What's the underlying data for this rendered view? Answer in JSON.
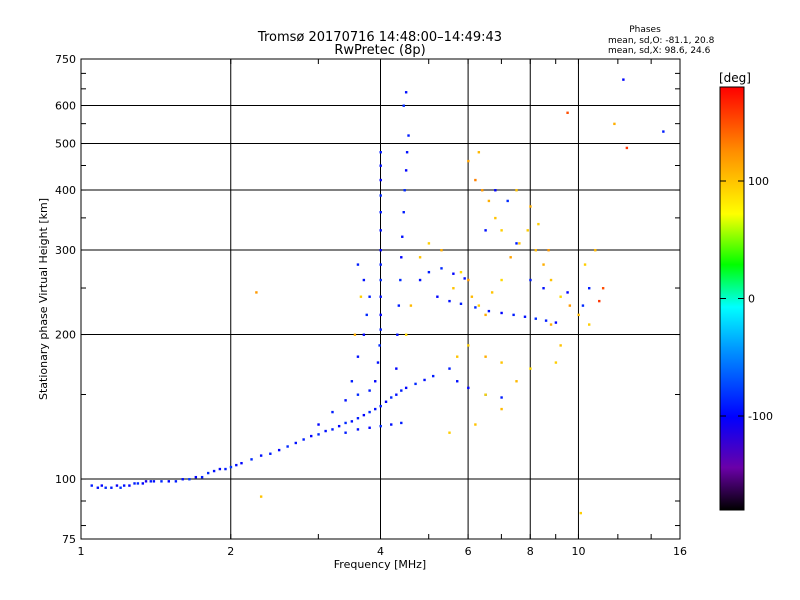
{
  "title_line1": "Tromsø 20170716 14:48:00–14:49:43",
  "title_line2": "RwPretec (8p)",
  "stats": {
    "heading": "Phases",
    "line_o": "mean, sd,O: -81.1, 20.8",
    "line_x": "mean, sd,X:  98.6, 24.6"
  },
  "colorbar": {
    "unit_label": "[deg]",
    "range": [
      -180,
      180
    ],
    "tick_labels": [
      "100",
      "0",
      "-100"
    ],
    "tick_values": [
      100,
      0,
      -100
    ],
    "stops": [
      "#000000",
      "#6a00a8",
      "#0000ff",
      "#0096ff",
      "#00ffff",
      "#00ff00",
      "#ffff00",
      "#ff8c00",
      "#ff0000"
    ]
  },
  "chart_data": {
    "type": "scatter",
    "title": "Tromsø 20170716 14:48:00–14:49:43",
    "subtitle": "RwPretec (8p)",
    "xlabel": "Frequency [MHz]",
    "ylabel": "Stationary phase Virtual Height [km]",
    "x_scale": "log",
    "y_scale": "log",
    "xlim": [
      1,
      16
    ],
    "ylim": [
      75,
      750
    ],
    "x_ticks": [
      1,
      2,
      4,
      6,
      8,
      10,
      16
    ],
    "x_tick_labels": [
      "1",
      "2",
      "4",
      "6",
      "8",
      "10",
      "16"
    ],
    "y_ticks": [
      75,
      100,
      200,
      300,
      400,
      500,
      600,
      750
    ],
    "y_tick_labels": [
      "75",
      "100",
      "200",
      "300",
      "400",
      "500",
      "600",
      "750"
    ],
    "grid": true,
    "color_variable": "phase [deg]",
    "series": [
      {
        "name": "O",
        "description": "Dense, mostly blue points (phase ≈ -80°)",
        "points": [
          [
            1.05,
            97,
            -90
          ],
          [
            1.08,
            96,
            -95
          ],
          [
            1.1,
            97,
            -100
          ],
          [
            1.12,
            96,
            -85
          ],
          [
            1.15,
            96,
            -90
          ],
          [
            1.18,
            97,
            -105
          ],
          [
            1.2,
            96,
            -80
          ],
          [
            1.22,
            97,
            -95
          ],
          [
            1.25,
            97,
            -100
          ],
          [
            1.28,
            98,
            -90
          ],
          [
            1.3,
            98,
            -85
          ],
          [
            1.33,
            98,
            -100
          ],
          [
            1.35,
            99,
            -110
          ],
          [
            1.38,
            99,
            -90
          ],
          [
            1.4,
            99,
            -95
          ],
          [
            1.45,
            99,
            -85
          ],
          [
            1.5,
            99,
            -100
          ],
          [
            1.55,
            99,
            -90
          ],
          [
            1.6,
            100,
            -95
          ],
          [
            1.65,
            100,
            -80
          ],
          [
            1.7,
            101,
            -100
          ],
          [
            1.75,
            101,
            -90
          ],
          [
            1.8,
            103,
            -85
          ],
          [
            1.85,
            104,
            -95
          ],
          [
            1.9,
            105,
            -100
          ],
          [
            1.95,
            105,
            -90
          ],
          [
            2.0,
            106,
            -80
          ],
          [
            2.05,
            107,
            -95
          ],
          [
            2.1,
            108,
            -100
          ],
          [
            2.2,
            110,
            -85
          ],
          [
            2.3,
            112,
            -95
          ],
          [
            2.4,
            113,
            -90
          ],
          [
            2.5,
            115,
            -100
          ],
          [
            2.6,
            117,
            -85
          ],
          [
            2.7,
            119,
            -95
          ],
          [
            2.8,
            121,
            -90
          ],
          [
            2.9,
            123,
            -100
          ],
          [
            3.0,
            124,
            -85
          ],
          [
            3.1,
            126,
            -95
          ],
          [
            3.2,
            127,
            -90
          ],
          [
            3.3,
            129,
            -100
          ],
          [
            3.4,
            131,
            -85
          ],
          [
            3.5,
            132,
            -95
          ],
          [
            3.6,
            134,
            -90
          ],
          [
            3.7,
            136,
            -100
          ],
          [
            3.8,
            138,
            -85
          ],
          [
            3.9,
            140,
            -95
          ],
          [
            4.0,
            142,
            -90
          ],
          [
            4.1,
            145,
            -100
          ],
          [
            4.2,
            148,
            -85
          ],
          [
            4.3,
            150,
            -95
          ],
          [
            4.4,
            153,
            -90
          ],
          [
            4.5,
            155,
            -100
          ],
          [
            4.7,
            158,
            -85
          ],
          [
            4.9,
            161,
            -95
          ],
          [
            5.1,
            164,
            -90
          ],
          [
            3.4,
            125,
            -90
          ],
          [
            3.6,
            127,
            -95
          ],
          [
            3.8,
            128,
            -100
          ],
          [
            4.0,
            129,
            -85
          ],
          [
            4.2,
            130,
            -95
          ],
          [
            4.4,
            131,
            -90
          ],
          [
            3.0,
            130,
            -100
          ],
          [
            3.2,
            138,
            -90
          ],
          [
            3.4,
            146,
            -95
          ],
          [
            3.6,
            150,
            -85
          ],
          [
            3.8,
            153,
            -90
          ],
          [
            3.9,
            160,
            -100
          ],
          [
            3.95,
            175,
            -95
          ],
          [
            3.98,
            190,
            -85
          ],
          [
            4.0,
            205,
            -90
          ],
          [
            4.0,
            220,
            -100
          ],
          [
            4.0,
            240,
            -95
          ],
          [
            4.0,
            260,
            -85
          ],
          [
            4.0,
            280,
            -90
          ],
          [
            4.0,
            300,
            -100
          ],
          [
            4.0,
            330,
            -95
          ],
          [
            4.0,
            360,
            -90
          ],
          [
            4.0,
            390,
            -85
          ],
          [
            4.0,
            420,
            -100
          ],
          [
            4.0,
            450,
            -95
          ],
          [
            4.0,
            480,
            -90
          ],
          [
            4.3,
            170,
            -100
          ],
          [
            4.32,
            200,
            -95
          ],
          [
            4.35,
            230,
            -90
          ],
          [
            4.38,
            260,
            -85
          ],
          [
            4.4,
            290,
            -100
          ],
          [
            4.42,
            320,
            -95
          ],
          [
            4.45,
            360,
            -90
          ],
          [
            4.47,
            400,
            -85
          ],
          [
            4.5,
            440,
            -100
          ],
          [
            4.52,
            480,
            -95
          ],
          [
            4.55,
            520,
            -90
          ],
          [
            4.45,
            600,
            -85
          ],
          [
            4.5,
            640,
            -95
          ],
          [
            3.5,
            160,
            -90
          ],
          [
            3.6,
            180,
            -95
          ],
          [
            3.7,
            200,
            -100
          ],
          [
            3.75,
            220,
            -85
          ],
          [
            3.8,
            240,
            -90
          ],
          [
            3.7,
            260,
            -95
          ],
          [
            3.6,
            280,
            -90
          ],
          [
            5.2,
            240,
            -100
          ],
          [
            5.5,
            235,
            -95
          ],
          [
            5.8,
            232,
            -90
          ],
          [
            6.2,
            228,
            -85
          ],
          [
            6.6,
            224,
            -95
          ],
          [
            7.0,
            222,
            -100
          ],
          [
            7.4,
            220,
            -90
          ],
          [
            7.8,
            218,
            -95
          ],
          [
            8.2,
            216,
            -85
          ],
          [
            8.6,
            214,
            -90
          ],
          [
            9.0,
            212,
            -100
          ],
          [
            5.5,
            170,
            -90
          ],
          [
            5.7,
            160,
            -95
          ],
          [
            6.0,
            155,
            -100
          ],
          [
            6.5,
            150,
            -85
          ],
          [
            7.0,
            148,
            -90
          ],
          [
            4.8,
            260,
            -95
          ],
          [
            5.0,
            270,
            -90
          ],
          [
            5.3,
            275,
            -85
          ],
          [
            5.6,
            268,
            -100
          ],
          [
            5.9,
            262,
            -95
          ],
          [
            8.0,
            260,
            -90
          ],
          [
            8.5,
            250,
            -95
          ],
          [
            9.5,
            245,
            -100
          ],
          [
            10.2,
            230,
            -85
          ],
          [
            10.5,
            250,
            -90
          ],
          [
            6.5,
            330,
            -95
          ],
          [
            7.5,
            310,
            -90
          ],
          [
            6.8,
            400,
            -100
          ],
          [
            7.2,
            380,
            -85
          ],
          [
            12.3,
            680,
            -100
          ],
          [
            14.8,
            530,
            -90
          ]
        ]
      },
      {
        "name": "X",
        "description": "Scattered warm-colored points (phase ≈ +100°)",
        "points": [
          [
            3.55,
            200,
            110
          ],
          [
            3.65,
            240,
            95
          ],
          [
            4.5,
            200,
            90
          ],
          [
            4.6,
            230,
            105
          ],
          [
            4.8,
            290,
            100
          ],
          [
            5.0,
            310,
            95
          ],
          [
            5.3,
            300,
            110
          ],
          [
            5.6,
            250,
            100
          ],
          [
            5.8,
            270,
            90
          ],
          [
            6.0,
            260,
            120
          ],
          [
            6.1,
            240,
            105
          ],
          [
            6.3,
            230,
            95
          ],
          [
            6.5,
            220,
            110
          ],
          [
            6.7,
            245,
            100
          ],
          [
            7.0,
            260,
            90
          ],
          [
            7.3,
            290,
            115
          ],
          [
            7.6,
            310,
            100
          ],
          [
            7.9,
            330,
            95
          ],
          [
            8.2,
            300,
            105
          ],
          [
            8.5,
            280,
            110
          ],
          [
            8.8,
            260,
            100
          ],
          [
            9.2,
            240,
            90
          ],
          [
            9.6,
            230,
            120
          ],
          [
            10.0,
            220,
            105
          ],
          [
            10.5,
            210,
            95
          ],
          [
            11.0,
            235,
            160
          ],
          [
            11.2,
            250,
            150
          ],
          [
            6.2,
            420,
            130
          ],
          [
            6.4,
            400,
            120
          ],
          [
            6.6,
            380,
            110
          ],
          [
            6.8,
            350,
            100
          ],
          [
            7.0,
            330,
            95
          ],
          [
            6.0,
            460,
            115
          ],
          [
            6.3,
            480,
            105
          ],
          [
            7.5,
            400,
            100
          ],
          [
            8.0,
            370,
            110
          ],
          [
            8.3,
            340,
            95
          ],
          [
            8.7,
            300,
            120
          ],
          [
            5.7,
            180,
            100
          ],
          [
            6.0,
            190,
            95
          ],
          [
            6.5,
            180,
            110
          ],
          [
            7.0,
            175,
            100
          ],
          [
            7.5,
            160,
            105
          ],
          [
            8.0,
            170,
            90
          ],
          [
            9.0,
            175,
            95
          ],
          [
            6.5,
            150,
            90
          ],
          [
            7.0,
            140,
            105
          ],
          [
            5.5,
            125,
            95
          ],
          [
            6.2,
            130,
            100
          ],
          [
            9.5,
            580,
            150
          ],
          [
            11.8,
            550,
            110
          ],
          [
            12.5,
            490,
            160
          ],
          [
            2.25,
            245,
            120
          ],
          [
            2.3,
            92,
            100
          ],
          [
            10.1,
            85,
            95
          ],
          [
            8.8,
            210,
            110
          ],
          [
            9.2,
            190,
            100
          ],
          [
            10.3,
            280,
            95
          ],
          [
            10.8,
            300,
            105
          ]
        ]
      }
    ]
  }
}
